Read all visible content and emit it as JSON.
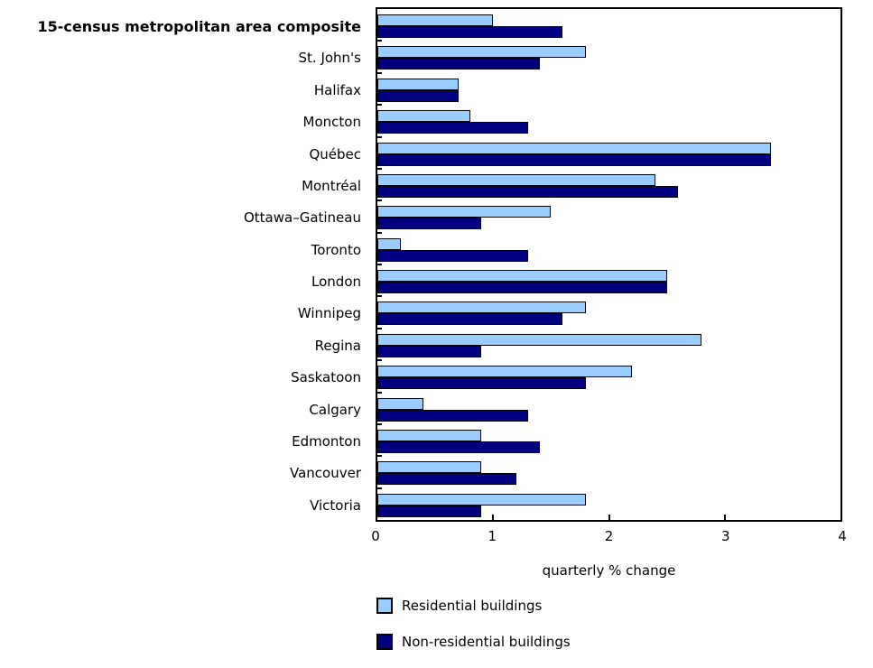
{
  "chart_data": {
    "type": "bar",
    "orientation": "horizontal",
    "title": "",
    "xlabel": "quarterly % change",
    "xlim": [
      0,
      4
    ],
    "xticks": [
      0,
      1,
      2,
      3,
      4
    ],
    "grid": false,
    "legend_position": "bottom-left",
    "emphasized_category": "15-census metropolitan area composite",
    "categories": [
      "15-census metropolitan area composite",
      "St. John's",
      "Halifax",
      "Moncton",
      "Québec",
      "Montréal",
      "Ottawa–Gatineau",
      "Toronto",
      "London",
      "Winnipeg",
      "Regina",
      "Saskatoon",
      "Calgary",
      "Edmonton",
      "Vancouver",
      "Victoria"
    ],
    "series": [
      {
        "name": "Residential buildings",
        "color": "#99CCFF",
        "values": [
          1.0,
          1.8,
          0.7,
          0.8,
          3.4,
          2.4,
          1.5,
          0.2,
          2.5,
          1.8,
          2.8,
          2.2,
          0.4,
          0.9,
          0.9,
          1.8
        ]
      },
      {
        "name": "Non-residential buildings",
        "color": "#000080",
        "values": [
          1.6,
          1.4,
          0.7,
          1.3,
          3.4,
          2.6,
          0.9,
          1.3,
          2.5,
          1.6,
          0.9,
          1.8,
          1.3,
          1.4,
          1.2,
          0.9
        ]
      }
    ],
    "bar_border_color": "#000000"
  }
}
